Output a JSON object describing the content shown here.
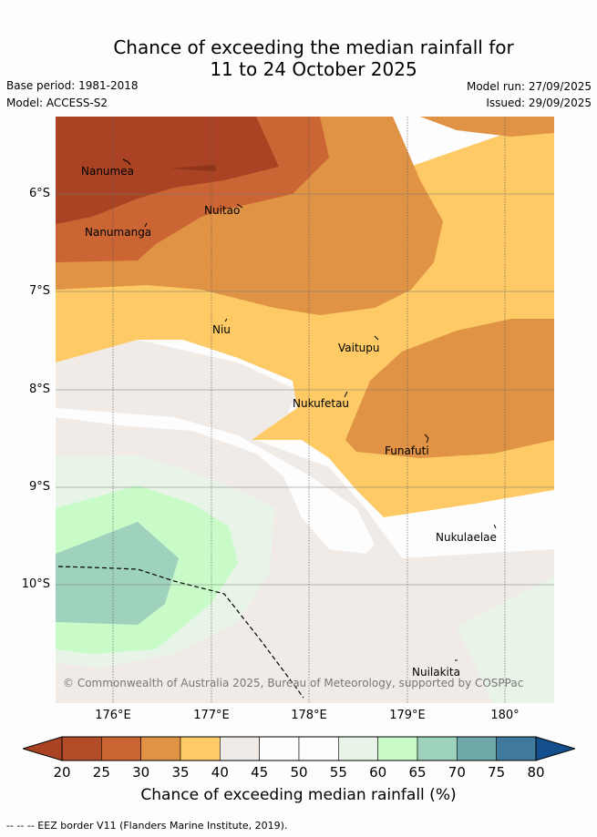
{
  "title_line1": "Chance of exceeding the median rainfall for",
  "title_line2": "11 to 24 October 2025",
  "base_period": "Base period: 1981-2018",
  "model": "Model: ACCESS-S2",
  "model_run": "Model run: 27/09/2025",
  "issued": "Issued: 29/09/2025",
  "copyright": "© Commonwealth of Australia 2025, Bureau of Meteorology, supported by COSPPac",
  "places": [
    "Nanumea",
    "Nuitao",
    "Nanumanga",
    "Niu",
    "Vaitupu",
    "Nukufetau",
    "Funafuti",
    "Nukulaelae",
    "Nuilakita"
  ],
  "lat_labels": [
    "6°S",
    "7°S",
    "8°S",
    "9°S",
    "10°S"
  ],
  "lon_labels": [
    "176°E",
    "177°E",
    "178°E",
    "179°E",
    "180°"
  ],
  "colorbar": {
    "ticks": [
      "20",
      "25",
      "30",
      "35",
      "40",
      "45",
      "50",
      "55",
      "60",
      "65",
      "70",
      "75",
      "80"
    ],
    "colors": [
      "#a94324",
      "#b24b28",
      "#cb6533",
      "#e09245",
      "#fdca65",
      "#f1ebe7",
      "#fdfdfd",
      "#fdfdfd",
      "#e9f4e9",
      "#c9fbc9",
      "#9ed2bd",
      "#6fa8a8",
      "#3f7a9c",
      "#154e8c"
    ],
    "title": "Chance of exceeding median rainfall (%)"
  },
  "eez_note": "--  --  -- EEZ border V11 (Flanders Marine Institute, 2019)."
}
